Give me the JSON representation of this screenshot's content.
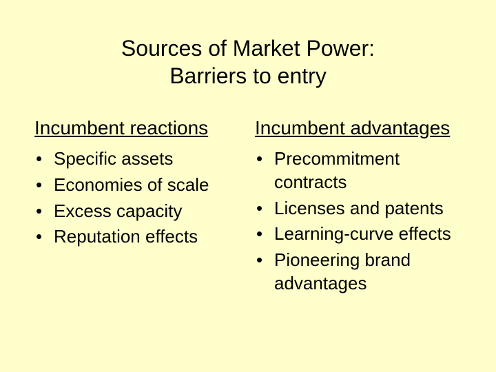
{
  "background_color": "#ffffcc",
  "text_color": "#000000",
  "title": {
    "line1": "Sources of Market Power:",
    "line2": "Barriers to entry",
    "fontsize": 32
  },
  "left": {
    "heading": "Incumbent reactions",
    "items": [
      "Specific assets",
      "Economies of scale",
      "Excess capacity",
      "Reputation effects"
    ]
  },
  "right": {
    "heading": "Incumbent advantages",
    "items": [
      "Precommitment contracts",
      "Licenses and patents",
      "Learning-curve effects",
      "Pioneering brand advantages"
    ]
  },
  "body_fontsize": 26,
  "heading_fontsize": 28,
  "bullet_char": "•"
}
